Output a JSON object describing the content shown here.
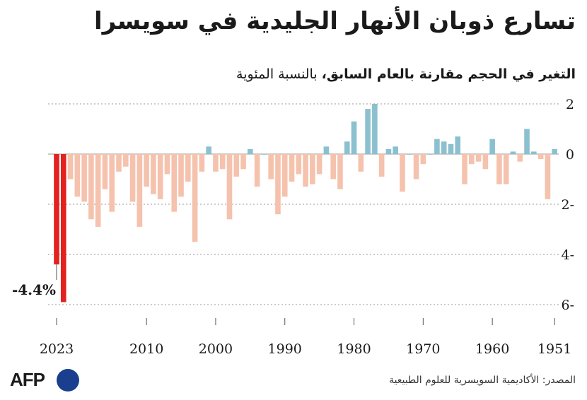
{
  "header": {
    "title": "تسارع ذوبان الأنهار الجليدية في سويسرا",
    "subtitle_bold": "التغير في الحجم مقارنة بالعام السابق،",
    "subtitle_rest": " بالنسبة المئوية"
  },
  "footer": {
    "source": "المصدر: الأكاديمية السويسرية للعلوم الطبيعية",
    "logo_text": "AFP"
  },
  "colors": {
    "negative": "#f5c2ad",
    "positive": "#8bc0cf",
    "highlight": "#e3211f",
    "grid": "#9a9a9a"
  },
  "chart_data": {
    "type": "bar",
    "title": "تسارع ذوبان الأنهار الجليدية في سويسرا",
    "ylabel": "التغير في الحجم مقارنة بالعام السابق، بالنسبة المئوية",
    "ylim": [
      -6.5,
      2
    ],
    "yticks": [
      2,
      0,
      -2,
      -4,
      -6
    ],
    "ytick_labels": [
      "2",
      "0",
      "2-",
      "4-",
      "6-"
    ],
    "xticks": [
      2023,
      2010,
      2000,
      1990,
      1980,
      1970,
      1960,
      1951
    ],
    "x_direction": "reversed",
    "grid": true,
    "highlight_years": [
      2022,
      2023
    ],
    "annotation": {
      "year": 2023,
      "text": "-4.4%"
    },
    "x": [
      2023,
      2022,
      2021,
      2020,
      2019,
      2018,
      2017,
      2016,
      2015,
      2014,
      2013,
      2012,
      2011,
      2010,
      2009,
      2008,
      2007,
      2006,
      2005,
      2004,
      2003,
      2002,
      2001,
      2000,
      1999,
      1998,
      1997,
      1996,
      1995,
      1994,
      1993,
      1992,
      1991,
      1990,
      1989,
      1988,
      1987,
      1986,
      1985,
      1984,
      1983,
      1982,
      1981,
      1980,
      1979,
      1978,
      1977,
      1976,
      1975,
      1974,
      1973,
      1972,
      1971,
      1970,
      1969,
      1968,
      1967,
      1966,
      1965,
      1964,
      1963,
      1962,
      1961,
      1960,
      1959,
      1958,
      1957,
      1956,
      1955,
      1954,
      1953,
      1952,
      1951
    ],
    "values": [
      -4.4,
      -5.9,
      -1.0,
      -1.7,
      -1.9,
      -2.6,
      -2.9,
      -1.4,
      -2.3,
      -0.7,
      -0.5,
      -1.9,
      -2.9,
      -1.3,
      -1.6,
      -1.8,
      -0.8,
      -2.3,
      -1.7,
      -1.1,
      -3.5,
      -0.7,
      0.3,
      -0.7,
      -0.6,
      -2.6,
      -0.9,
      -0.6,
      0.2,
      -1.3,
      0.0,
      -1.0,
      -2.4,
      -1.7,
      -1.1,
      -0.8,
      -1.3,
      -1.2,
      -0.8,
      0.3,
      -1.0,
      -1.4,
      0.5,
      1.3,
      -0.7,
      1.8,
      2.0,
      -0.9,
      0.2,
      0.3,
      -1.5,
      0.0,
      -1.0,
      -0.4,
      0.0,
      0.6,
      0.5,
      0.4,
      0.7,
      -1.2,
      -0.4,
      -0.3,
      -0.6,
      0.6,
      -1.2,
      -1.2,
      0.1,
      -0.3,
      1.0,
      0.1,
      -0.2,
      -1.8,
      0.2
    ]
  }
}
